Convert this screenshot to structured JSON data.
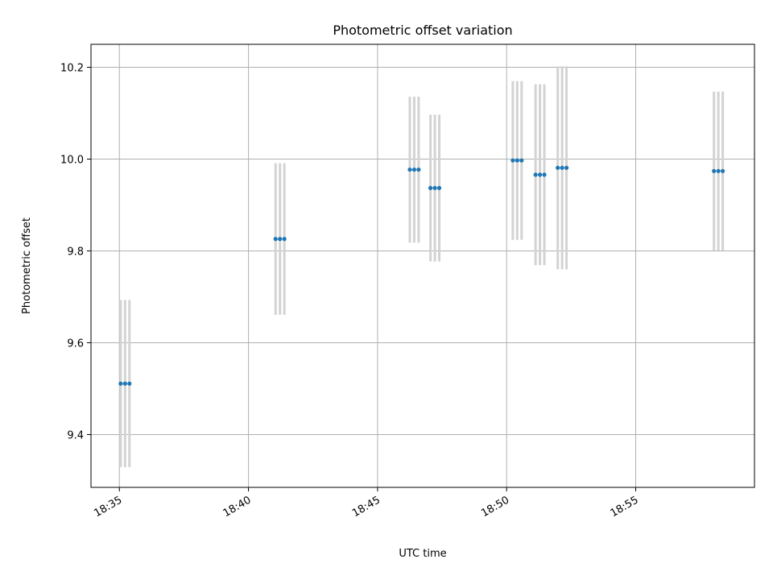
{
  "chart_data": {
    "type": "scatter",
    "title": "Photometric offset variation",
    "xlabel": "UTC time",
    "ylabel": "Photometric offset",
    "x_tick_labels": [
      "18:35",
      "18:40",
      "18:45",
      "18:50",
      "18:55"
    ],
    "x_ticks_minutes": [
      35,
      40,
      45,
      50,
      55
    ],
    "x_range_minutes": [
      33.9,
      59.6
    ],
    "y_ticks": [
      9.4,
      9.6,
      9.8,
      10.0,
      10.2
    ],
    "y_range": [
      9.285,
      10.25
    ],
    "grid": true,
    "colors": {
      "points": "#1f77b4",
      "errorbars": "#d3d3d3",
      "grid": "#b0b0b0"
    },
    "series": [
      {
        "points": [
          {
            "minute": 35.05,
            "y": 9.511,
            "err": 0.182
          },
          {
            "minute": 35.22,
            "y": 9.511,
            "err": 0.182
          },
          {
            "minute": 35.39,
            "y": 9.511,
            "err": 0.182
          },
          {
            "minute": 41.05,
            "y": 9.826,
            "err": 0.165
          },
          {
            "minute": 41.22,
            "y": 9.826,
            "err": 0.165
          },
          {
            "minute": 41.39,
            "y": 9.826,
            "err": 0.165
          },
          {
            "minute": 46.25,
            "y": 9.977,
            "err": 0.159
          },
          {
            "minute": 46.42,
            "y": 9.977,
            "err": 0.159
          },
          {
            "minute": 46.59,
            "y": 9.977,
            "err": 0.159
          },
          {
            "minute": 47.05,
            "y": 9.937,
            "err": 0.16
          },
          {
            "minute": 47.22,
            "y": 9.937,
            "err": 0.16
          },
          {
            "minute": 47.39,
            "y": 9.937,
            "err": 0.16
          },
          {
            "minute": 50.24,
            "y": 9.997,
            "err": 0.173
          },
          {
            "minute": 50.41,
            "y": 9.997,
            "err": 0.173
          },
          {
            "minute": 50.58,
            "y": 9.997,
            "err": 0.173
          },
          {
            "minute": 51.12,
            "y": 9.966,
            "err": 0.197
          },
          {
            "minute": 51.29,
            "y": 9.966,
            "err": 0.197
          },
          {
            "minute": 51.46,
            "y": 9.966,
            "err": 0.197
          },
          {
            "minute": 51.98,
            "y": 9.981,
            "err": 0.221
          },
          {
            "minute": 52.15,
            "y": 9.981,
            "err": 0.221
          },
          {
            "minute": 52.32,
            "y": 9.981,
            "err": 0.221
          },
          {
            "minute": 58.03,
            "y": 9.974,
            "err": 0.173
          },
          {
            "minute": 58.2,
            "y": 9.974,
            "err": 0.173
          },
          {
            "minute": 58.37,
            "y": 9.974,
            "err": 0.173
          }
        ]
      }
    ]
  }
}
